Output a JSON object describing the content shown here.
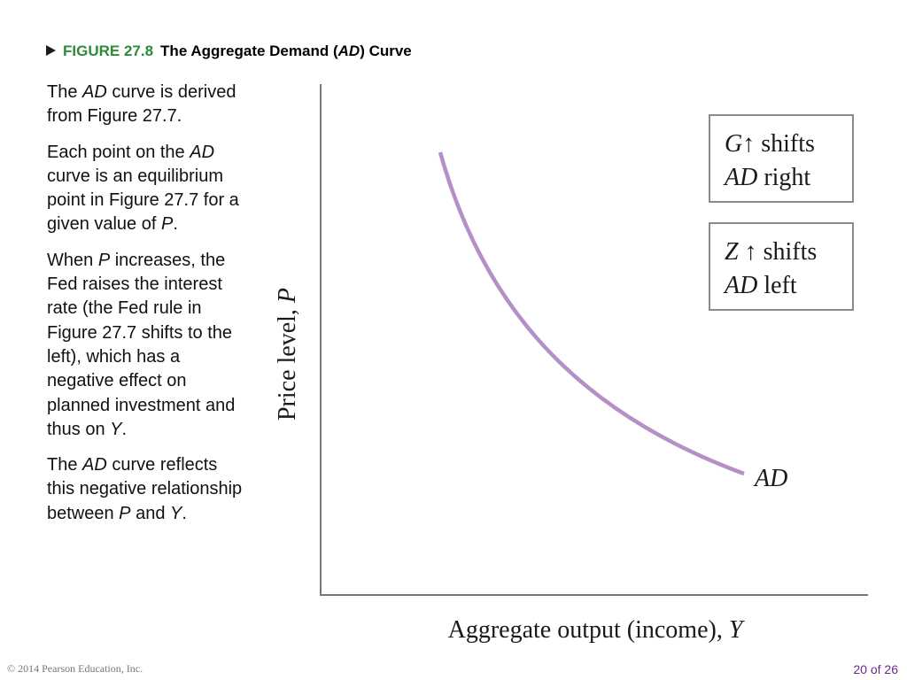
{
  "header": {
    "label": "FIGURE 27.8",
    "title": [
      {
        "text": "The Aggregate Demand ("
      },
      {
        "text": "AD",
        "italic": true
      },
      {
        "text": ") Curve"
      }
    ]
  },
  "body": {
    "paragraphs": [
      [
        {
          "text": "The "
        },
        {
          "text": "AD",
          "italic": true
        },
        {
          "text": " curve is derived from Figure 27.7."
        }
      ],
      [
        {
          "text": "Each point on the "
        },
        {
          "text": "AD",
          "italic": true
        },
        {
          "text": " curve is an equilibrium point in Figure 27.7 for a given value of "
        },
        {
          "text": "P",
          "italic": true
        },
        {
          "text": "."
        }
      ],
      [
        {
          "text": "When "
        },
        {
          "text": "P",
          "italic": true
        },
        {
          "text": " increases, the Fed raises the interest rate (the Fed rule in Figure 27.7 shifts to the left), which has a negative effect on planned investment and thus on "
        },
        {
          "text": "Y",
          "italic": true
        },
        {
          "text": "."
        }
      ],
      [
        {
          "text": "The "
        },
        {
          "text": "AD",
          "italic": true
        },
        {
          "text": " curve reflects this negative relationship between "
        },
        {
          "text": "P",
          "italic": true
        },
        {
          "text": " and "
        },
        {
          "text": "Y",
          "italic": true
        },
        {
          "text": "."
        }
      ]
    ]
  },
  "figure": {
    "y_axis_label": [
      {
        "text": "Price level, "
      },
      {
        "text": "P",
        "italic": true
      }
    ],
    "x_axis_label": [
      {
        "text": "Aggregate output (income), "
      },
      {
        "text": "Y",
        "italic": true
      }
    ],
    "curve_label": "AD",
    "boxes": [
      {
        "lines": [
          [
            {
              "text": "G",
              "italic": true
            },
            {
              "text": "↑ shifts"
            }
          ],
          [
            {
              "text": "AD",
              "italic": true
            },
            {
              "text": " right"
            }
          ]
        ]
      },
      {
        "lines": [
          [
            {
              "text": "Z",
              "italic": true
            },
            {
              "text": " ↑ shifts"
            }
          ],
          [
            {
              "text": "AD",
              "italic": true
            },
            {
              "text": " left"
            }
          ]
        ]
      }
    ]
  },
  "footer": {
    "copyright": "© 2014 Pearson Education, Inc.",
    "page": "20 of 26"
  }
}
